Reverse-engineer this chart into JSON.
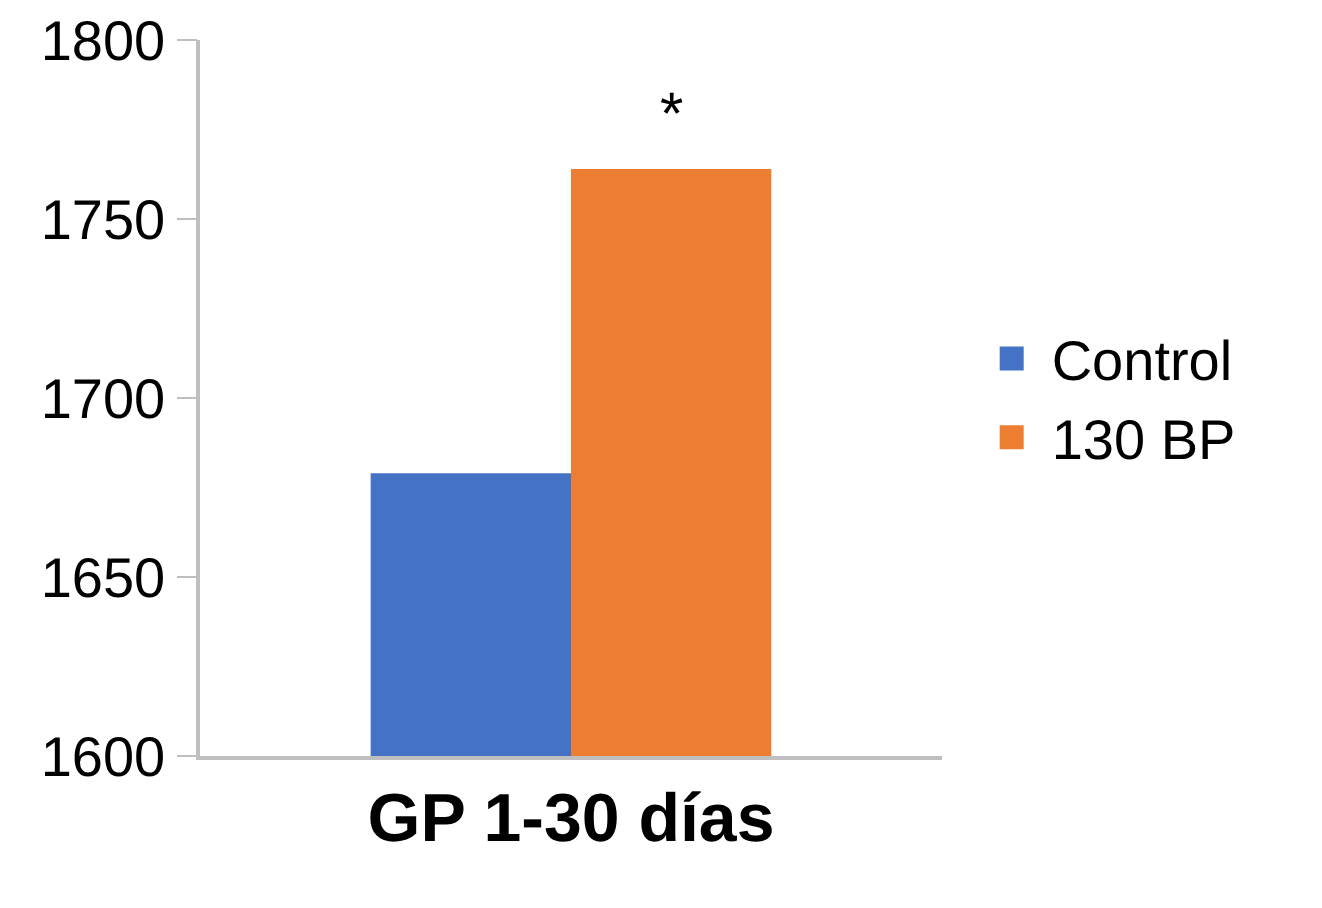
{
  "chart_data": {
    "type": "bar",
    "categories": [
      "GP 1-30 días"
    ],
    "series": [
      {
        "name": "Control",
        "color": "#4472c4",
        "values": [
          1679
        ]
      },
      {
        "name": "130 BP",
        "color": "#ed7d31",
        "values": [
          1764
        ]
      }
    ],
    "ylim": [
      1600,
      1800
    ],
    "yticks": [
      1600,
      1650,
      1700,
      1750,
      1800
    ],
    "grid": false,
    "legend": "right",
    "annotations": [
      "*"
    ]
  }
}
